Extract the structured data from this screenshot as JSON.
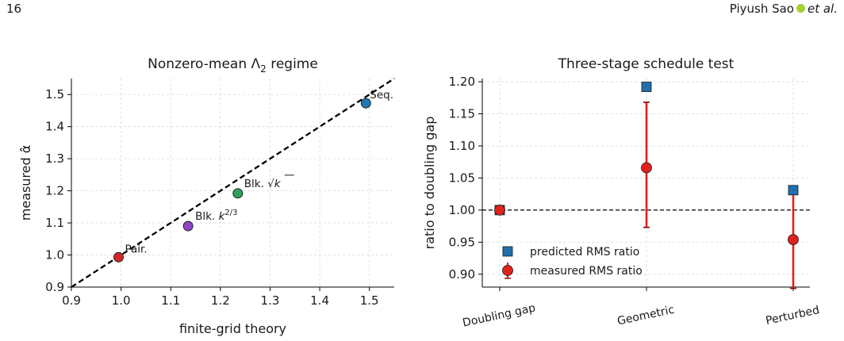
{
  "page": {
    "number": "16",
    "author": "Piyush Sao",
    "etal": "et al.",
    "orcid_color": "#a6ce39"
  },
  "chart_data": [
    {
      "type": "scatter",
      "title": "Nonzero-mean Λ",
      "title_subscript": "2",
      "title_suffix": " regime",
      "xlabel": "finite-grid theory",
      "ylabel": "measured α̂",
      "xlim": [
        0.9,
        1.55
      ],
      "ylim": [
        0.9,
        1.55
      ],
      "xticks": [
        0.9,
        1.0,
        1.1,
        1.2,
        1.3,
        1.4,
        1.5
      ],
      "yticks": [
        0.9,
        1.0,
        1.1,
        1.2,
        1.3,
        1.4,
        1.5
      ],
      "grid": true,
      "reference_line": {
        "slope": 1,
        "intercept": 0,
        "style": "dashed",
        "color": "#000000"
      },
      "points": [
        {
          "label": "Pair.",
          "x": 0.995,
          "y": 0.993,
          "color": "#d62728"
        },
        {
          "label": "Blk. k",
          "label_sup": "2/3",
          "x": 1.135,
          "y": 1.09,
          "color": "#8e44c4"
        },
        {
          "label": "Blk. √k",
          "x": 1.235,
          "y": 1.192,
          "color": "#2ca05a"
        },
        {
          "label": "Seq.",
          "x": 1.493,
          "y": 1.473,
          "color": "#1f77b4"
        }
      ]
    },
    {
      "type": "scatter",
      "title": "Three-stage schedule test",
      "xlabel": "",
      "ylabel": "ratio to doubling gap",
      "categories": [
        "Doubling gap",
        "Geometric",
        "Perturbed"
      ],
      "ylim": [
        0.88,
        1.205
      ],
      "yticks": [
        0.9,
        0.95,
        1.0,
        1.05,
        1.1,
        1.15,
        1.2
      ],
      "ytick_labels": [
        "0.90",
        "0.95",
        "1.00",
        "1.05",
        "1.10",
        "1.15",
        "1.20"
      ],
      "grid": true,
      "reference_line": {
        "y": 1.0,
        "style": "dashed",
        "color": "#000000"
      },
      "legend_position": "bottom-left",
      "series": [
        {
          "name": "predicted RMS ratio",
          "marker": "square",
          "color": "#1f6fae",
          "values": [
            1.0,
            1.192,
            1.031
          ]
        },
        {
          "name": "measured RMS ratio",
          "marker": "circle",
          "color": "#e3211c",
          "values": [
            1.0,
            1.066,
            0.954
          ],
          "err_low": [
            1.0,
            0.973,
            0.878
          ],
          "err_high": [
            1.0,
            1.168,
            1.031
          ]
        }
      ]
    }
  ]
}
